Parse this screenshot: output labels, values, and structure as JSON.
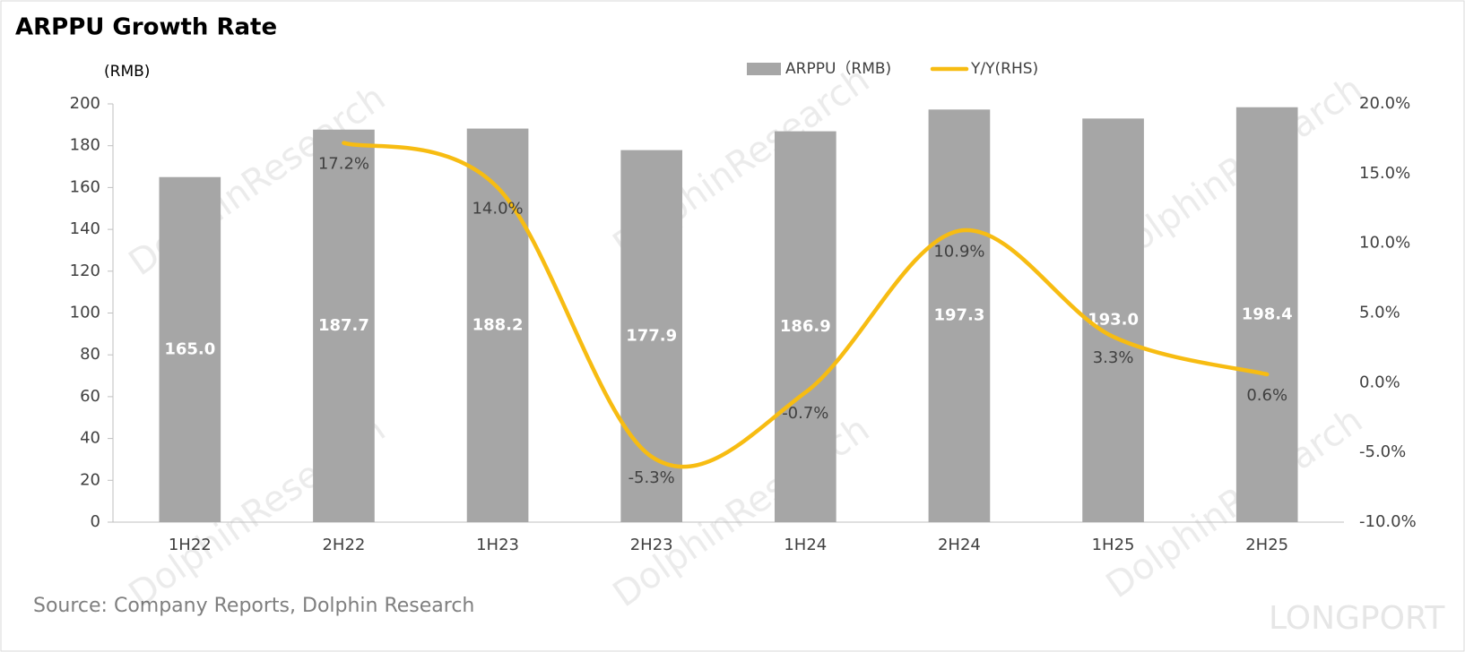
{
  "chart_data": {
    "type": "bar",
    "title": "ARPPU Growth Rate",
    "y_label": "(RMB)",
    "source": "Source: Company Reports, Dolphin Research",
    "watermark": "DolphinResearch",
    "logo": "LONGPORT",
    "categories": [
      "1H22",
      "2H22",
      "1H23",
      "2H23",
      "1H24",
      "2H24",
      "1H25",
      "2H25"
    ],
    "series": [
      {
        "name": "ARPPU（RMB)",
        "type": "bar",
        "color": "#a6a6a6",
        "values": [
          165.0,
          187.7,
          188.2,
          177.9,
          186.9,
          197.3,
          193.0,
          198.4
        ],
        "value_labels": [
          "165.0",
          "187.7",
          "188.2",
          "177.9",
          "186.9",
          "197.3",
          "193.0",
          "198.4"
        ]
      },
      {
        "name": "Y/Y(RHS)",
        "type": "line",
        "axis": "y2",
        "color": "#f7bc12",
        "values": [
          null,
          17.2,
          14.0,
          -5.3,
          -0.7,
          10.9,
          3.3,
          0.6
        ],
        "value_labels": [
          null,
          "17.2%",
          "14.0%",
          "-5.3%",
          "-0.7%",
          "10.9%",
          "3.3%",
          "0.6%"
        ]
      }
    ],
    "ylim": [
      0,
      200
    ],
    "yticks": [
      0,
      20,
      40,
      60,
      80,
      100,
      120,
      140,
      160,
      180,
      200
    ],
    "y2lim": [
      -10,
      20
    ],
    "y2ticks": [
      {
        "value": -10,
        "label": "-10.0%"
      },
      {
        "value": -5,
        "label": "-5.0%"
      },
      {
        "value": 0,
        "label": "0.0%"
      },
      {
        "value": 5,
        "label": "5.0%"
      },
      {
        "value": 10,
        "label": "10.0%"
      },
      {
        "value": 15,
        "label": "15.0%"
      },
      {
        "value": 20,
        "label": "20.0%"
      }
    ],
    "grid": false,
    "legend": "top"
  }
}
